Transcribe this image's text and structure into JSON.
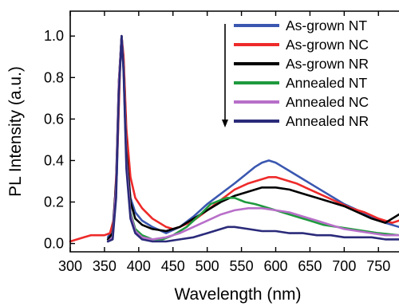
{
  "chart_data": {
    "type": "line",
    "xlabel": "Wavelength (nm)",
    "ylabel": "PL Intensity (a.u.)",
    "xlim": [
      300,
      780
    ],
    "ylim": [
      -0.04,
      1.12
    ],
    "xticks": [
      300,
      350,
      400,
      450,
      500,
      550,
      600,
      650,
      700,
      750
    ],
    "yticks": [
      0.0,
      0.2,
      0.4,
      0.6,
      0.8,
      1.0
    ],
    "ytick_labels": [
      "0.0",
      "0.2",
      "0.4",
      "0.6",
      "0.8",
      "1.0"
    ],
    "grid": false,
    "legend_position": "top-right",
    "annotation": "downward arrow",
    "series": [
      {
        "name": "As-grown NT",
        "color": "#3a57b0",
        "points": [
          [
            355,
            0.03
          ],
          [
            362,
            0.07
          ],
          [
            368,
            0.33
          ],
          [
            372,
            0.82
          ],
          [
            375,
            1.0
          ],
          [
            378,
            0.85
          ],
          [
            382,
            0.45
          ],
          [
            388,
            0.22
          ],
          [
            395,
            0.15
          ],
          [
            405,
            0.11
          ],
          [
            420,
            0.08
          ],
          [
            440,
            0.05
          ],
          [
            460,
            0.08
          ],
          [
            480,
            0.13
          ],
          [
            500,
            0.19
          ],
          [
            520,
            0.24
          ],
          [
            540,
            0.29
          ],
          [
            555,
            0.33
          ],
          [
            570,
            0.37
          ],
          [
            580,
            0.39
          ],
          [
            590,
            0.4
          ],
          [
            600,
            0.39
          ],
          [
            610,
            0.37
          ],
          [
            620,
            0.35
          ],
          [
            640,
            0.31
          ],
          [
            660,
            0.27
          ],
          [
            680,
            0.23
          ],
          [
            700,
            0.19
          ],
          [
            720,
            0.16
          ],
          [
            740,
            0.13
          ],
          [
            760,
            0.1
          ],
          [
            780,
            0.08
          ]
        ]
      },
      {
        "name": "As-grown NC",
        "color": "#ee2a2a",
        "points": [
          [
            300,
            0.01
          ],
          [
            310,
            0.02
          ],
          [
            320,
            0.03
          ],
          [
            330,
            0.04
          ],
          [
            340,
            0.04
          ],
          [
            350,
            0.04
          ],
          [
            358,
            0.05
          ],
          [
            364,
            0.12
          ],
          [
            369,
            0.45
          ],
          [
            373,
            0.88
          ],
          [
            375,
            1.0
          ],
          [
            378,
            0.9
          ],
          [
            382,
            0.55
          ],
          [
            388,
            0.32
          ],
          [
            395,
            0.22
          ],
          [
            405,
            0.17
          ],
          [
            420,
            0.12
          ],
          [
            440,
            0.08
          ],
          [
            450,
            0.07
          ],
          [
            460,
            0.08
          ],
          [
            480,
            0.11
          ],
          [
            500,
            0.16
          ],
          [
            520,
            0.21
          ],
          [
            540,
            0.26
          ],
          [
            560,
            0.29
          ],
          [
            580,
            0.31
          ],
          [
            590,
            0.32
          ],
          [
            600,
            0.32
          ],
          [
            610,
            0.31
          ],
          [
            630,
            0.29
          ],
          [
            650,
            0.26
          ],
          [
            670,
            0.23
          ],
          [
            690,
            0.2
          ],
          [
            710,
            0.17
          ],
          [
            730,
            0.15
          ],
          [
            750,
            0.12
          ],
          [
            770,
            0.1
          ],
          [
            780,
            0.11
          ]
        ]
      },
      {
        "name": "As-grown NR",
        "color": "#000000",
        "points": [
          [
            355,
            0.02
          ],
          [
            362,
            0.05
          ],
          [
            367,
            0.3
          ],
          [
            371,
            0.78
          ],
          [
            375,
            1.0
          ],
          [
            378,
            0.85
          ],
          [
            382,
            0.45
          ],
          [
            388,
            0.2
          ],
          [
            395,
            0.12
          ],
          [
            405,
            0.09
          ],
          [
            420,
            0.07
          ],
          [
            440,
            0.06
          ],
          [
            460,
            0.08
          ],
          [
            480,
            0.12
          ],
          [
            500,
            0.16
          ],
          [
            520,
            0.2
          ],
          [
            540,
            0.23
          ],
          [
            560,
            0.25
          ],
          [
            580,
            0.27
          ],
          [
            590,
            0.27
          ],
          [
            600,
            0.27
          ],
          [
            620,
            0.26
          ],
          [
            640,
            0.24
          ],
          [
            660,
            0.22
          ],
          [
            680,
            0.2
          ],
          [
            700,
            0.18
          ],
          [
            720,
            0.15
          ],
          [
            740,
            0.12
          ],
          [
            760,
            0.1
          ],
          [
            780,
            0.14
          ]
        ]
      },
      {
        "name": "Annealed NT",
        "color": "#1f9a3e",
        "points": [
          [
            355,
            0.01
          ],
          [
            362,
            0.03
          ],
          [
            367,
            0.25
          ],
          [
            371,
            0.75
          ],
          [
            375,
            1.0
          ],
          [
            378,
            0.84
          ],
          [
            382,
            0.4
          ],
          [
            388,
            0.15
          ],
          [
            395,
            0.07
          ],
          [
            405,
            0.04
          ],
          [
            420,
            0.02
          ],
          [
            435,
            0.02
          ],
          [
            450,
            0.04
          ],
          [
            470,
            0.08
          ],
          [
            490,
            0.14
          ],
          [
            505,
            0.19
          ],
          [
            520,
            0.21
          ],
          [
            530,
            0.22
          ],
          [
            540,
            0.22
          ],
          [
            555,
            0.2
          ],
          [
            570,
            0.19
          ],
          [
            590,
            0.17
          ],
          [
            610,
            0.15
          ],
          [
            630,
            0.13
          ],
          [
            650,
            0.11
          ],
          [
            670,
            0.09
          ],
          [
            690,
            0.08
          ],
          [
            710,
            0.07
          ],
          [
            730,
            0.06
          ],
          [
            750,
            0.05
          ],
          [
            780,
            0.04
          ]
        ]
      },
      {
        "name": "Annealed NC",
        "color": "#b86fc9",
        "points": [
          [
            355,
            0.01
          ],
          [
            362,
            0.03
          ],
          [
            367,
            0.27
          ],
          [
            371,
            0.77
          ],
          [
            375,
            1.0
          ],
          [
            378,
            0.84
          ],
          [
            382,
            0.4
          ],
          [
            388,
            0.14
          ],
          [
            395,
            0.06
          ],
          [
            405,
            0.03
          ],
          [
            420,
            0.02
          ],
          [
            440,
            0.03
          ],
          [
            460,
            0.05
          ],
          [
            480,
            0.08
          ],
          [
            500,
            0.11
          ],
          [
            520,
            0.14
          ],
          [
            540,
            0.16
          ],
          [
            560,
            0.17
          ],
          [
            580,
            0.17
          ],
          [
            600,
            0.16
          ],
          [
            620,
            0.15
          ],
          [
            640,
            0.13
          ],
          [
            660,
            0.11
          ],
          [
            680,
            0.09
          ],
          [
            700,
            0.07
          ],
          [
            720,
            0.06
          ],
          [
            740,
            0.05
          ],
          [
            760,
            0.04
          ],
          [
            780,
            0.04
          ]
        ]
      },
      {
        "name": "Annealed NR",
        "color": "#2a2a7a",
        "points": [
          [
            355,
            0.01
          ],
          [
            362,
            0.02
          ],
          [
            367,
            0.22
          ],
          [
            371,
            0.72
          ],
          [
            375,
            1.0
          ],
          [
            378,
            0.82
          ],
          [
            382,
            0.36
          ],
          [
            388,
            0.12
          ],
          [
            395,
            0.05
          ],
          [
            405,
            0.02
          ],
          [
            420,
            0.01
          ],
          [
            440,
            0.01
          ],
          [
            460,
            0.02
          ],
          [
            480,
            0.03
          ],
          [
            500,
            0.05
          ],
          [
            520,
            0.07
          ],
          [
            530,
            0.08
          ],
          [
            540,
            0.08
          ],
          [
            560,
            0.07
          ],
          [
            580,
            0.06
          ],
          [
            600,
            0.06
          ],
          [
            620,
            0.05
          ],
          [
            640,
            0.05
          ],
          [
            660,
            0.04
          ],
          [
            680,
            0.04
          ],
          [
            700,
            0.03
          ],
          [
            720,
            0.03
          ],
          [
            740,
            0.03
          ],
          [
            760,
            0.02
          ],
          [
            780,
            0.02
          ]
        ]
      }
    ]
  }
}
